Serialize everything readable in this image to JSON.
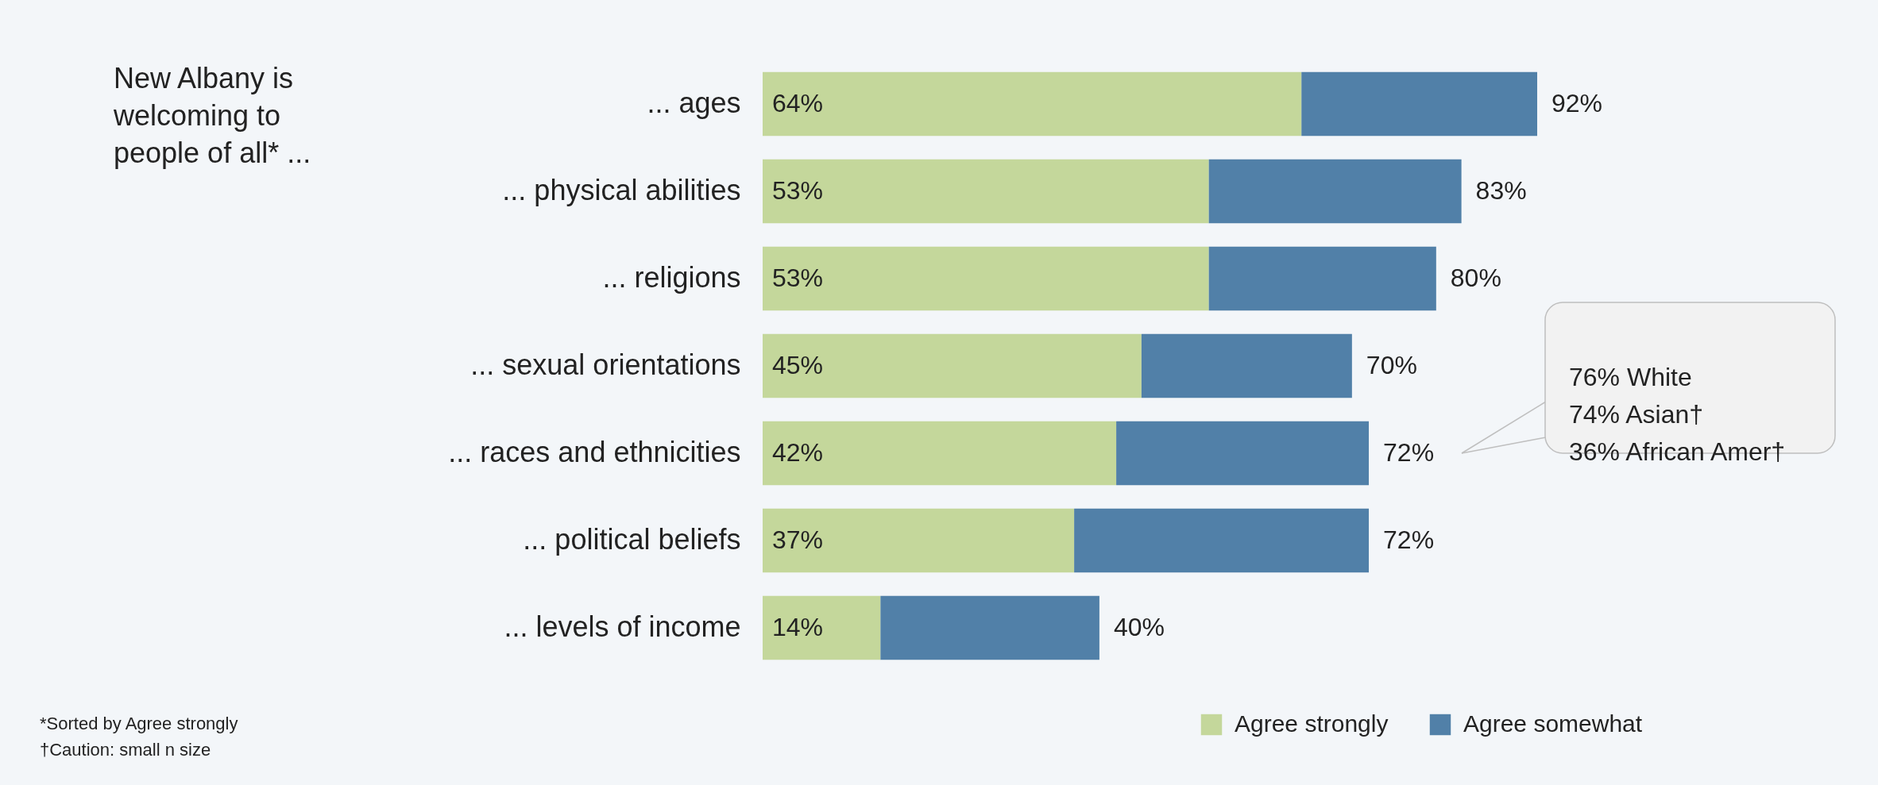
{
  "chart_data": {
    "type": "bar",
    "orientation": "horizontal",
    "stacked": true,
    "title": "New Albany is welcoming to people of all* ...",
    "categories": [
      "... ages",
      "... physical abilities",
      "... religions",
      "... sexual orientations",
      "... races and ethnicities",
      "... political beliefs",
      "... levels of income"
    ],
    "series": [
      {
        "name": "Agree strongly",
        "color": "#c4d79b",
        "values": [
          64,
          53,
          53,
          45,
          42,
          37,
          14
        ],
        "value_labels": [
          "64%",
          "53%",
          "53%",
          "45%",
          "42%",
          "37%",
          "14%"
        ]
      },
      {
        "name": "Agree somewhat",
        "color": "#5180a8",
        "values": [
          28,
          30,
          27,
          25,
          30,
          35,
          26
        ]
      }
    ],
    "totals": [
      "92%",
      "83%",
      "80%",
      "70%",
      "72%",
      "72%",
      "40%"
    ],
    "legend": "bottom right",
    "grid": false,
    "annotations": [
      "76%  White\n74%  Asian†\n36%  African Amer†",
      "*Sorted by Agree strongly",
      "†Caution: small n size"
    ]
  }
}
